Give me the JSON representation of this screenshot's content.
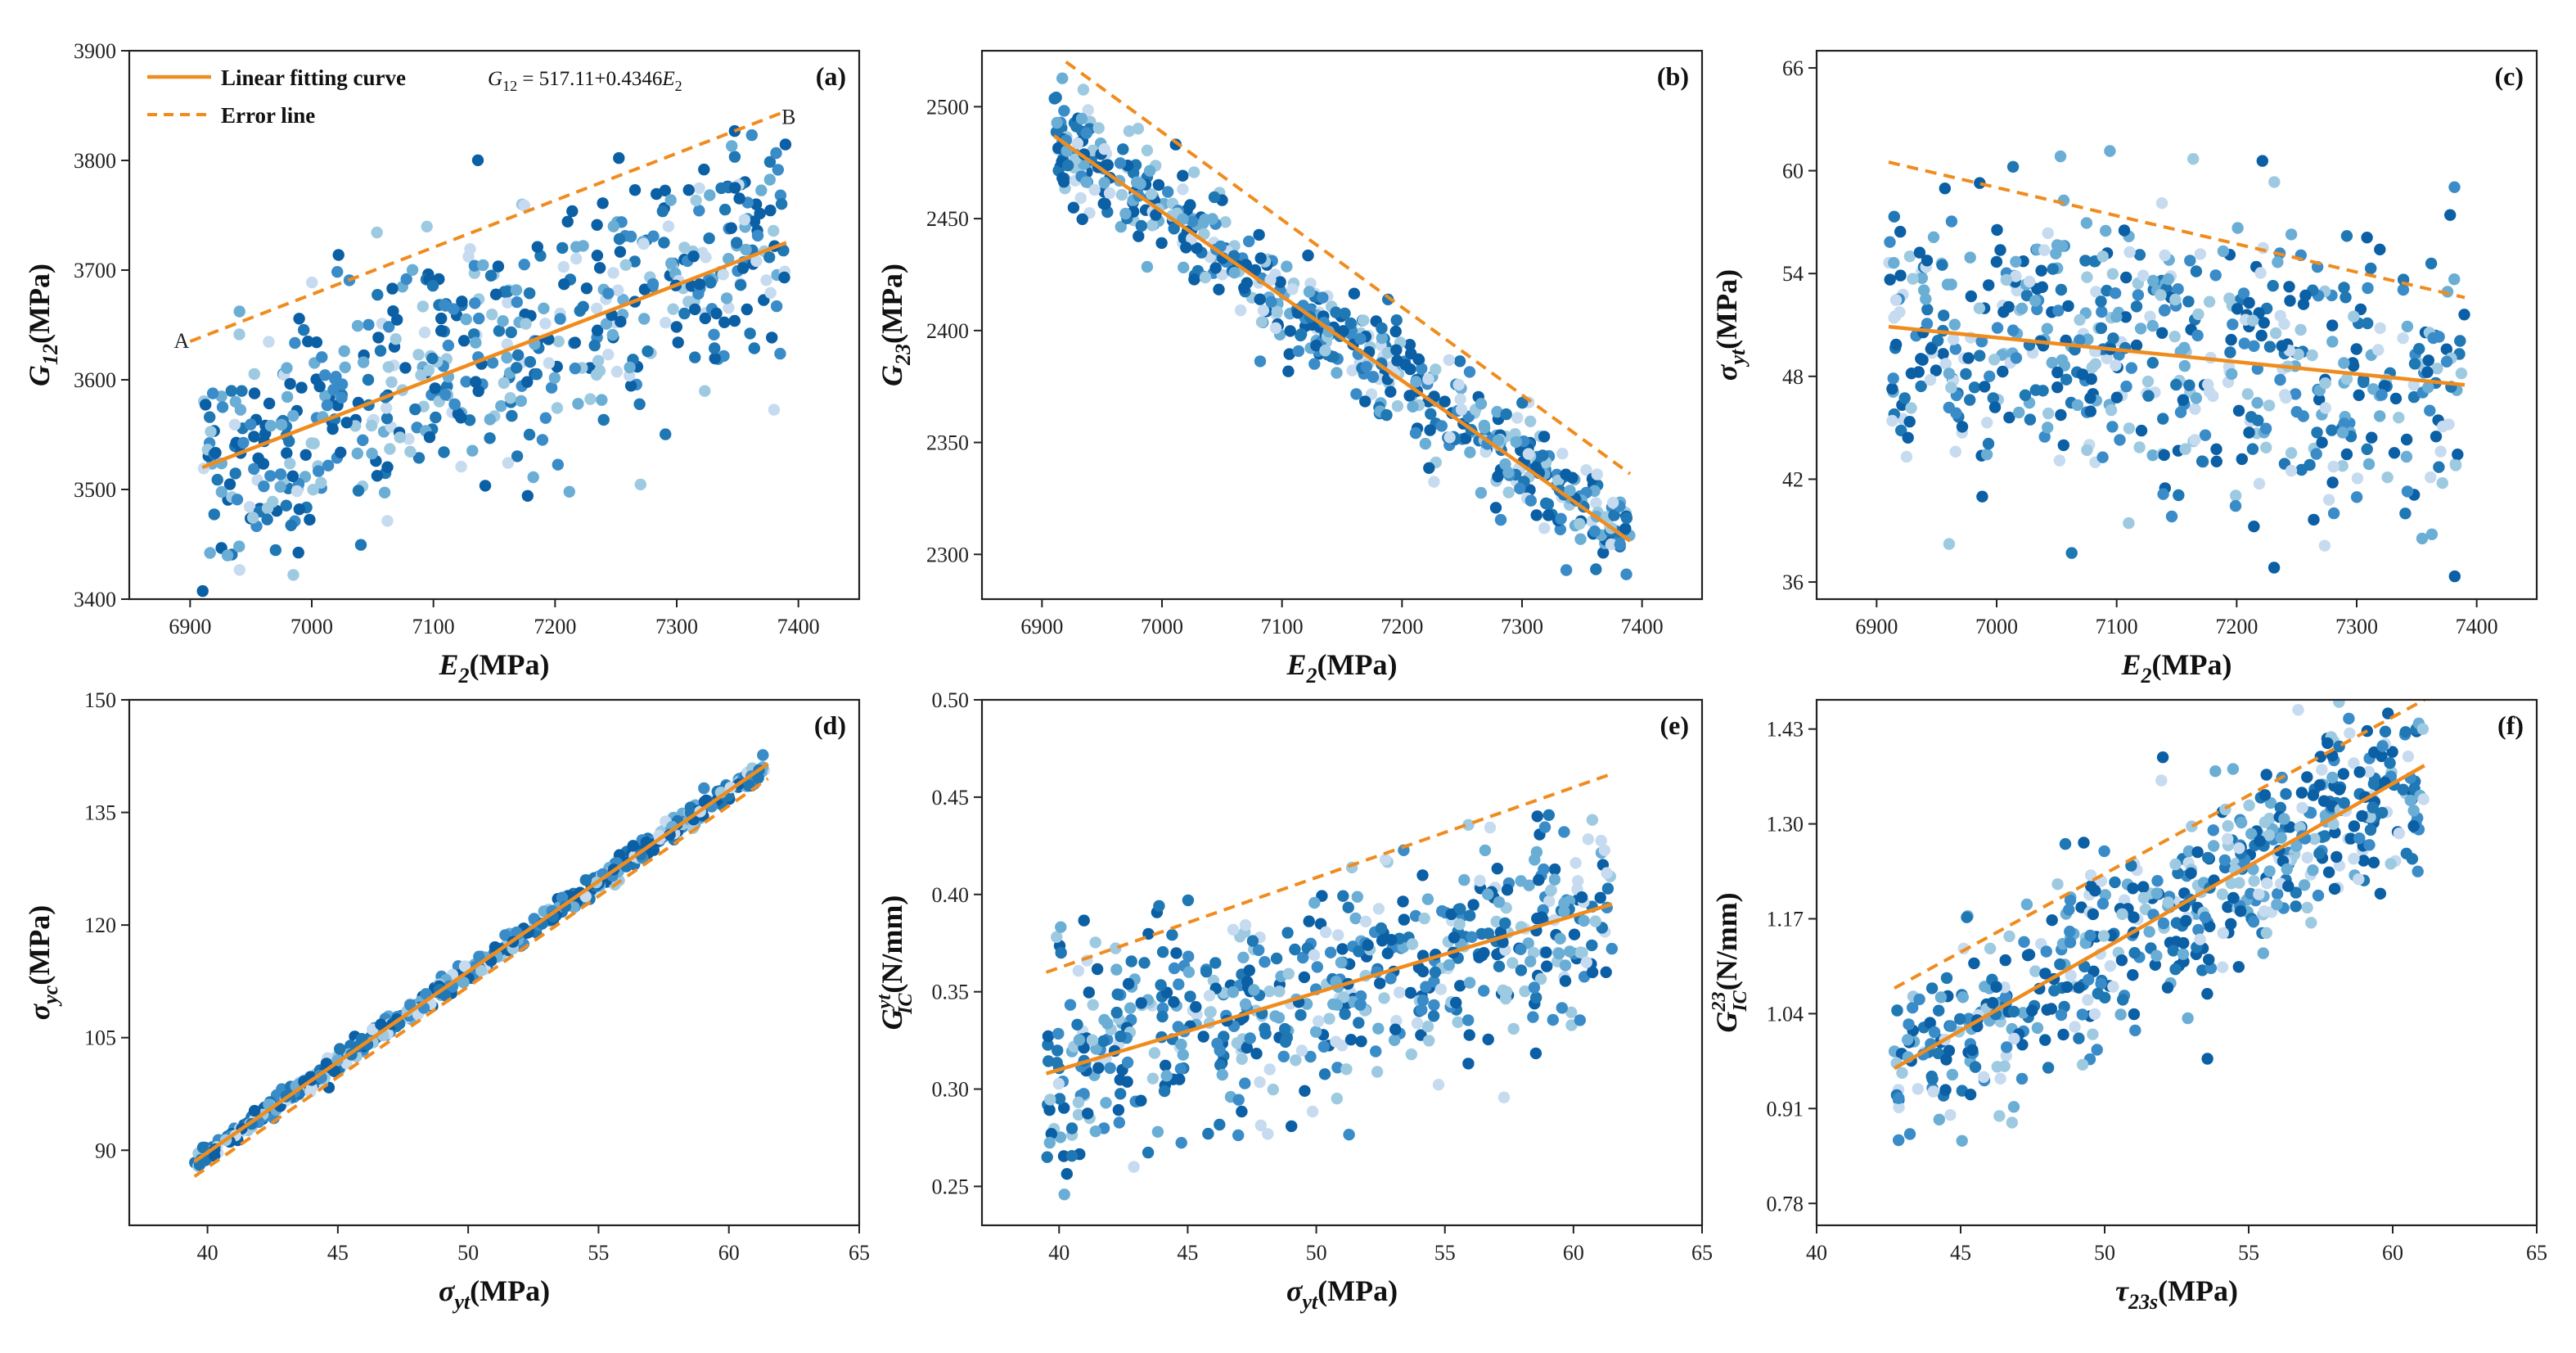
{
  "colors": {
    "fit": "#f08c1e",
    "points": [
      "#0b5fa5",
      "#1f77b4",
      "#3a8cc9",
      "#6aaed6",
      "#9ecae1",
      "#c6dbef"
    ]
  },
  "legend": {
    "fit_label": "Linear fitting curve",
    "error_label": "Error line",
    "equation": {
      "lhs_main": "G",
      "lhs_sub": "12",
      "rhs_main": "= 517.11+0.4346E",
      "rhs_sub": "2"
    }
  },
  "chart_data": [
    {
      "id": "a",
      "tag": "(a)",
      "type": "scatter",
      "xlim": [
        6850,
        7450
      ],
      "ylim": [
        3400,
        3900
      ],
      "xticks": [
        6900,
        7000,
        7100,
        7200,
        7300,
        7400
      ],
      "yticks": [
        3400,
        3500,
        3600,
        3700,
        3800,
        3900
      ],
      "xlabel": {
        "main": "E",
        "sub": "2",
        "unit": "(MPa)",
        "style": "italic"
      },
      "ylabel": {
        "main": "G",
        "sub": "12",
        "unit": "(MPa)",
        "style": "italic"
      },
      "fit_line": [
        [
          6910,
          3520
        ],
        [
          7390,
          3725
        ]
      ],
      "error_lines": [
        [
          [
            6900,
            3635
          ],
          [
            7390,
            3845
          ]
        ]
      ],
      "point_labels": [
        {
          "text": "A",
          "x": 6893,
          "y": 3636
        },
        {
          "text": "B",
          "x": 7392,
          "y": 3840
        }
      ],
      "cloud": {
        "n": 560,
        "x_range": [
          6910,
          7390
        ],
        "slope": 0.4346,
        "intercept": 517.11,
        "spread": 58,
        "seed": 11
      }
    },
    {
      "id": "b",
      "tag": "(b)",
      "type": "scatter",
      "xlim": [
        6850,
        7450
      ],
      "ylim": [
        2280,
        2525
      ],
      "xticks": [
        6900,
        7000,
        7100,
        7200,
        7300,
        7400
      ],
      "yticks": [
        2300,
        2350,
        2400,
        2450,
        2500
      ],
      "xlabel": {
        "main": "E",
        "sub": "2",
        "unit": "(MPa)",
        "style": "italic"
      },
      "ylabel": {
        "main": "G",
        "sub": "23",
        "unit": "(MPa)",
        "style": "italic"
      },
      "fit_line": [
        [
          6910,
          2487
        ],
        [
          7390,
          2306
        ]
      ],
      "error_lines": [
        [
          [
            6920,
            2520
          ],
          [
            7390,
            2336
          ]
        ]
      ],
      "point_labels": [],
      "cloud": {
        "n": 560,
        "x_range": [
          6910,
          7390
        ],
        "slope": -0.377,
        "intercept": 5092,
        "spread": 11,
        "seed": 23
      }
    },
    {
      "id": "c",
      "tag": "(c)",
      "type": "scatter",
      "xlim": [
        6850,
        7450
      ],
      "ylim": [
        35,
        67
      ],
      "xticks": [
        6900,
        7000,
        7100,
        7200,
        7300,
        7400
      ],
      "yticks": [
        36,
        42,
        48,
        54,
        60,
        66
      ],
      "xlabel": {
        "main": "E",
        "sub": "2",
        "unit": "(MPa)",
        "style": "italic"
      },
      "ylabel": {
        "main": "σ",
        "sub": "yt",
        "unit": "(MPa)",
        "style": "italic"
      },
      "fit_line": [
        [
          6910,
          50.9
        ],
        [
          7390,
          47.5
        ]
      ],
      "error_lines": [
        [
          [
            6910,
            60.5
          ],
          [
            7390,
            52.6
          ]
        ]
      ],
      "point_labels": [],
      "cloud": {
        "n": 560,
        "x_range": [
          6910,
          7390
        ],
        "slope": -0.00708,
        "intercept": 99.8,
        "spread": 4.2,
        "seed": 37
      }
    },
    {
      "id": "d",
      "tag": "(d)",
      "type": "scatter",
      "xlim": [
        37,
        65
      ],
      "ylim": [
        80,
        150
      ],
      "xticks": [
        40,
        45,
        50,
        55,
        60,
        65
      ],
      "yticks": [
        90,
        105,
        120,
        135,
        150
      ],
      "xlabel": {
        "main": "σ",
        "sub": "yt",
        "unit": "(MPa)",
        "style": "italic"
      },
      "ylabel": {
        "main": "σ",
        "sub": "yc",
        "unit": "(MPa)",
        "style": "italic"
      },
      "fit_line": [
        [
          39.5,
          88.5
        ],
        [
          61.5,
          141.5
        ]
      ],
      "error_lines": [
        [
          [
            39.5,
            86.5
          ],
          [
            61.5,
            139.5
          ]
        ]
      ],
      "point_labels": [],
      "cloud": {
        "n": 560,
        "x_range": [
          39.5,
          61.5
        ],
        "slope": 2.409,
        "intercept": -6.66,
        "spread": 0.7,
        "seed": 41
      }
    },
    {
      "id": "e",
      "tag": "(e)",
      "type": "scatter",
      "xlim": [
        37,
        65
      ],
      "ylim": [
        0.23,
        0.5
      ],
      "xticks": [
        40,
        45,
        50,
        55,
        60,
        65
      ],
      "yticks": [
        0.25,
        0.3,
        0.35,
        0.4,
        0.45,
        0.5
      ],
      "xlabel": {
        "main": "σ",
        "sub": "yt",
        "unit": "(MPa)",
        "style": "italic"
      },
      "ylabel": {
        "main": "G",
        "sub": "IC",
        "sup": "yt",
        "unit": "(N/mm)",
        "style": "italic"
      },
      "fit_line": [
        [
          39.5,
          0.308
        ],
        [
          61.5,
          0.395
        ]
      ],
      "error_lines": [
        [
          [
            39.5,
            0.36
          ],
          [
            61.5,
            0.462
          ]
        ]
      ],
      "point_labels": [],
      "cloud": {
        "n": 560,
        "x_range": [
          39.5,
          61.5
        ],
        "slope": 0.00395,
        "intercept": 0.152,
        "spread": 0.028,
        "seed": 53
      }
    },
    {
      "id": "f",
      "tag": "(f)",
      "type": "scatter",
      "xlim": [
        40,
        65
      ],
      "ylim": [
        0.75,
        1.47
      ],
      "xticks": [
        40,
        45,
        50,
        55,
        60,
        65
      ],
      "yticks": [
        0.78,
        0.91,
        1.04,
        1.17,
        1.3,
        1.43
      ],
      "xlabel": {
        "main": "τ",
        "sub": "23s",
        "unit": "(MPa)",
        "style": "italic"
      },
      "ylabel": {
        "main": "G",
        "sub": "IC",
        "sup": "23",
        "unit": "(N/mm)",
        "style": "italic"
      },
      "fit_line": [
        [
          42.7,
          0.965
        ],
        [
          61.1,
          1.38
        ]
      ],
      "error_lines": [
        [
          [
            42.7,
            1.075
          ],
          [
            61.1,
            1.47
          ]
        ]
      ],
      "point_labels": [],
      "cloud": {
        "n": 560,
        "x_range": [
          42.7,
          61.1
        ],
        "slope": 0.0225,
        "intercept": 0.004,
        "spread": 0.065,
        "seed": 67
      }
    }
  ]
}
